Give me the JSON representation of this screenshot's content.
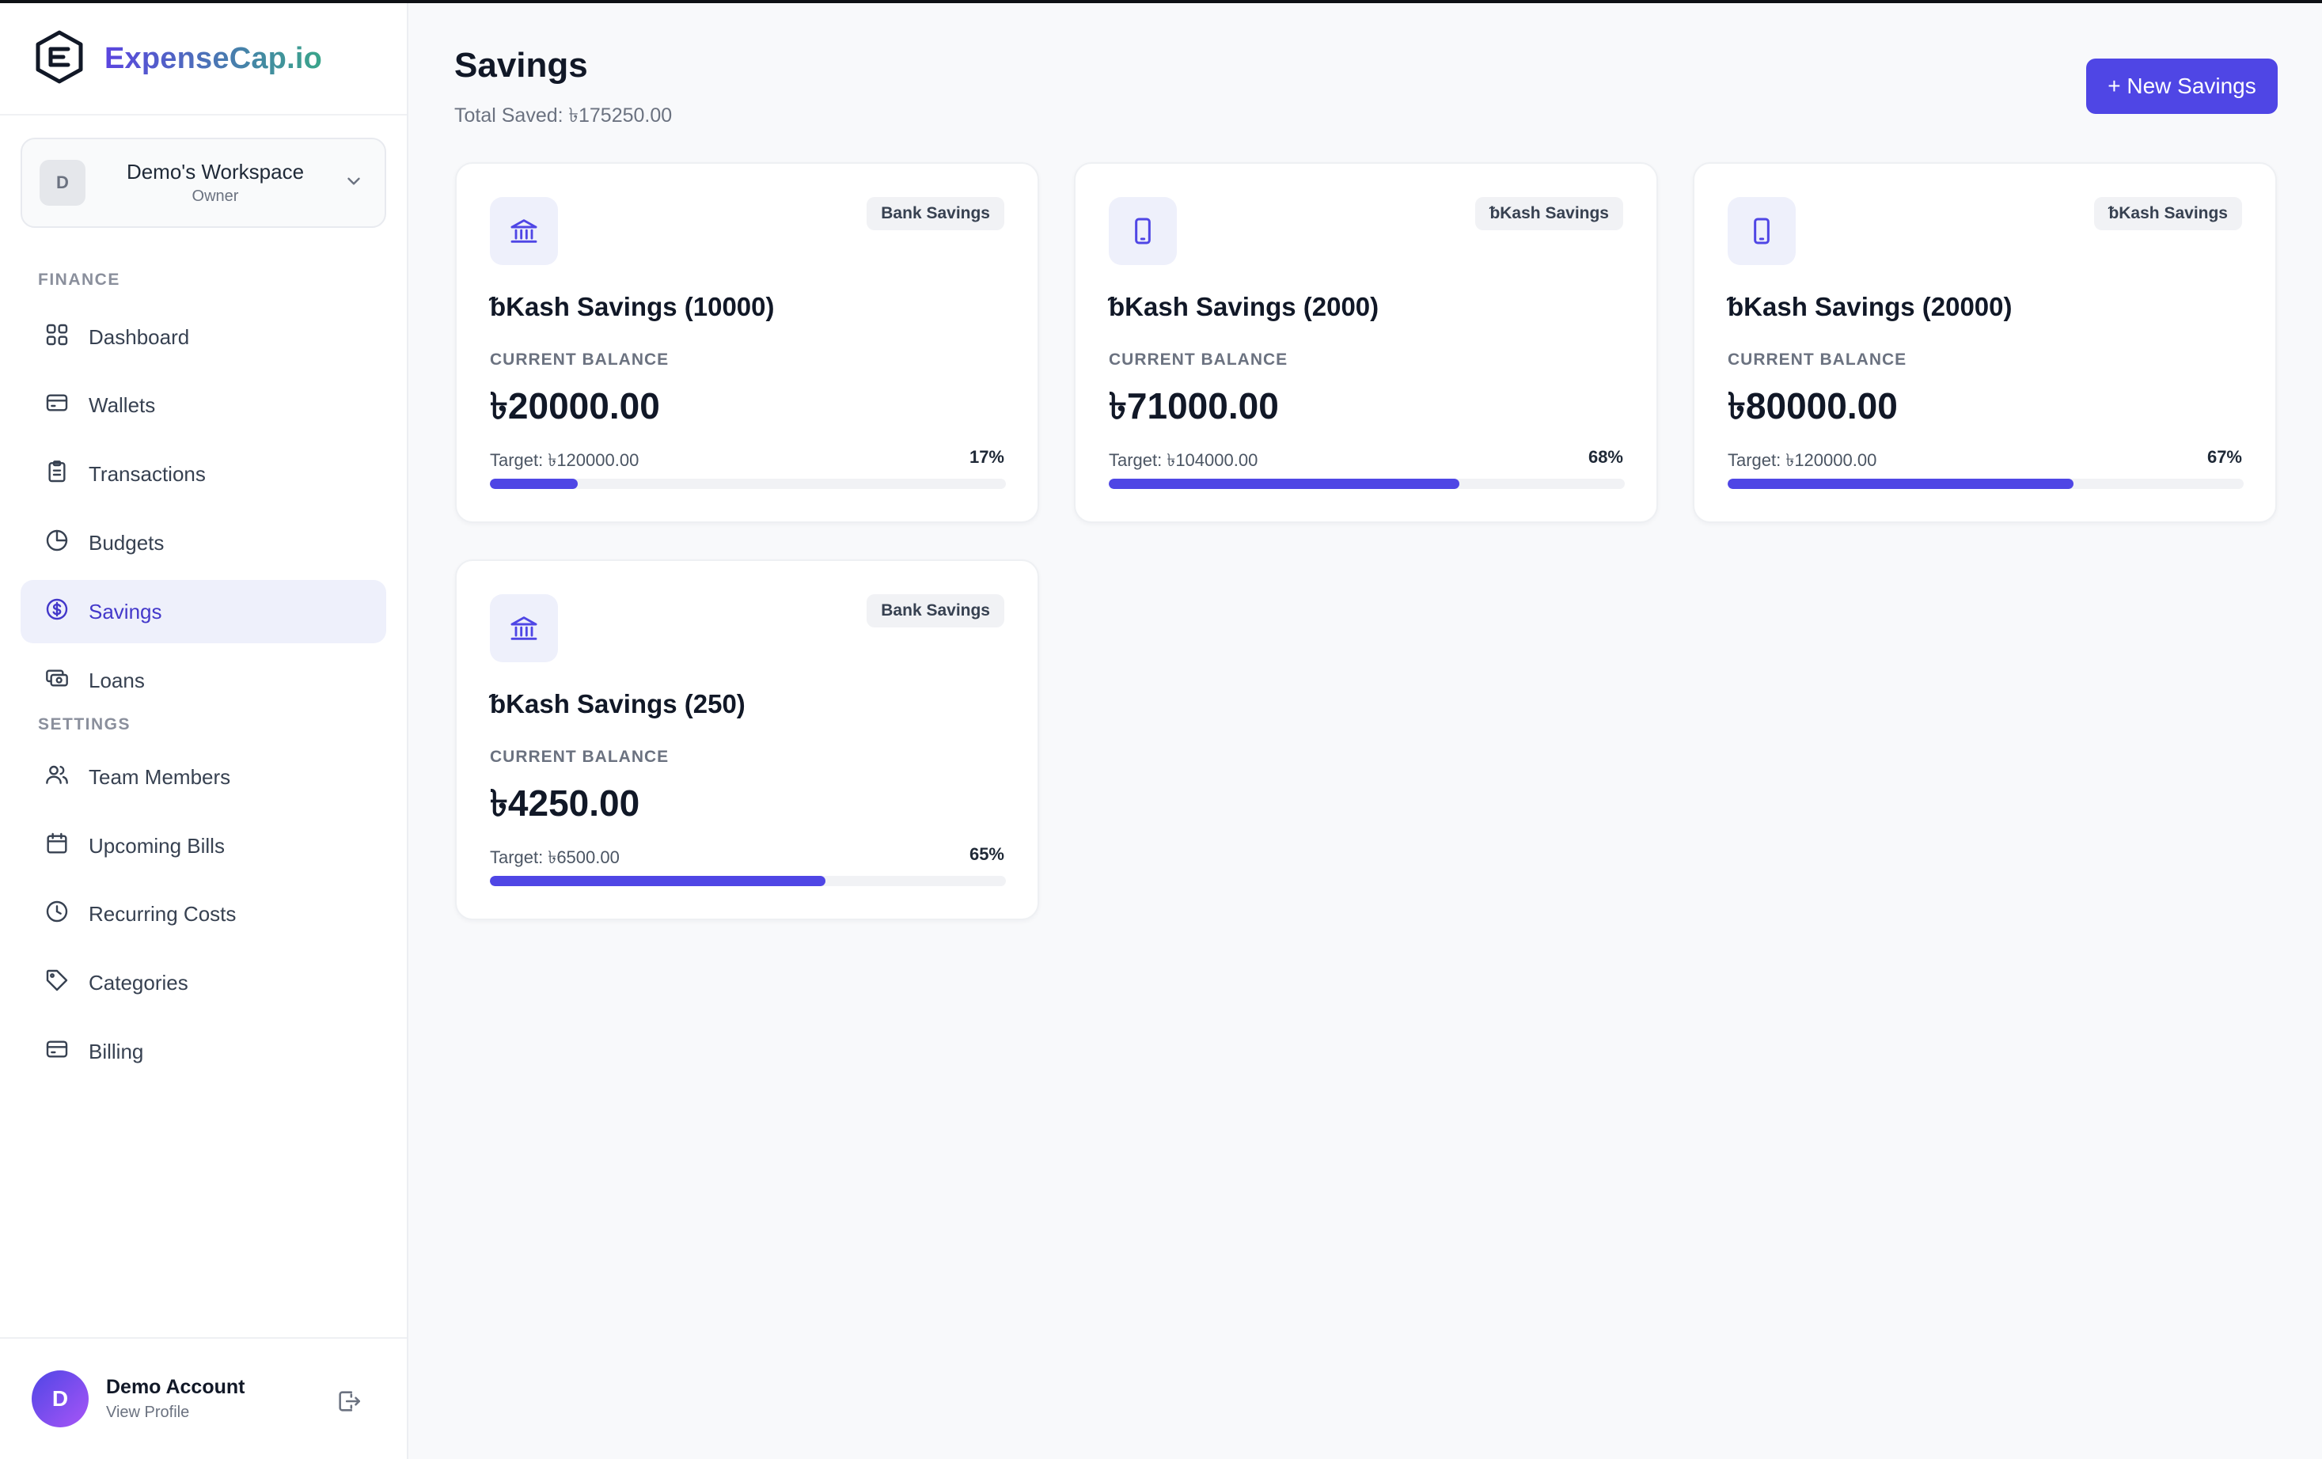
{
  "app": {
    "name": "ExpenseCap.io"
  },
  "workspace": {
    "initial": "D",
    "name": "Demo's Workspace",
    "role": "Owner"
  },
  "sidebar": {
    "sections": [
      {
        "label": "FINANCE",
        "items": [
          {
            "label": "Dashboard",
            "icon": "grid-icon"
          },
          {
            "label": "Wallets",
            "icon": "wallet-icon"
          },
          {
            "label": "Transactions",
            "icon": "clipboard-icon"
          },
          {
            "label": "Budgets",
            "icon": "pie-chart-icon"
          },
          {
            "label": "Savings",
            "icon": "dollar-circle-icon",
            "active": true
          },
          {
            "label": "Loans",
            "icon": "cash-icon"
          }
        ]
      },
      {
        "label": "SETTINGS",
        "items": [
          {
            "label": "Team Members",
            "icon": "users-icon"
          },
          {
            "label": "Upcoming Bills",
            "icon": "calendar-icon"
          },
          {
            "label": "Recurring Costs",
            "icon": "clock-icon"
          },
          {
            "label": "Categories",
            "icon": "tag-icon"
          },
          {
            "label": "Billing",
            "icon": "credit-card-icon"
          }
        ]
      }
    ]
  },
  "user": {
    "initial": "D",
    "name": "Demo Account",
    "link": "View Profile"
  },
  "page": {
    "title": "Savings",
    "total_saved": "Total Saved: ৳175250.00",
    "new_button": "+ New Savings"
  },
  "colors": {
    "accent": "#4f46e5",
    "accent_soft": "#eef0fb",
    "badge_bg": "#f1f2f5"
  },
  "savings": [
    {
      "type": "Bank Savings",
      "icon": "bank-icon",
      "name": "ᵬKash Savings (10000)",
      "balance_label": "CURRENT BALANCE",
      "balance": "৳20000.00",
      "target": "Target: ৳120000.00",
      "percent_label": "17%",
      "progress": 17
    },
    {
      "type": "ᵬKash Savings",
      "icon": "mobile-phone-icon",
      "name": "ᵬKash Savings (2000)",
      "balance_label": "CURRENT BALANCE",
      "balance": "৳71000.00",
      "target": "Target: ৳104000.00",
      "percent_label": "68%",
      "progress": 68
    },
    {
      "type": "ᵬKash Savings",
      "icon": "mobile-phone-icon",
      "name": "ᵬKash Savings (20000)",
      "balance_label": "CURRENT BALANCE",
      "balance": "৳80000.00",
      "target": "Target: ৳120000.00",
      "percent_label": "67%",
      "progress": 67
    },
    {
      "type": "Bank Savings",
      "icon": "bank-icon",
      "name": "ᵬKash Savings (250)",
      "balance_label": "CURRENT BALANCE",
      "balance": "৳4250.00",
      "target": "Target: ৳6500.00",
      "percent_label": "65%",
      "progress": 65
    }
  ]
}
